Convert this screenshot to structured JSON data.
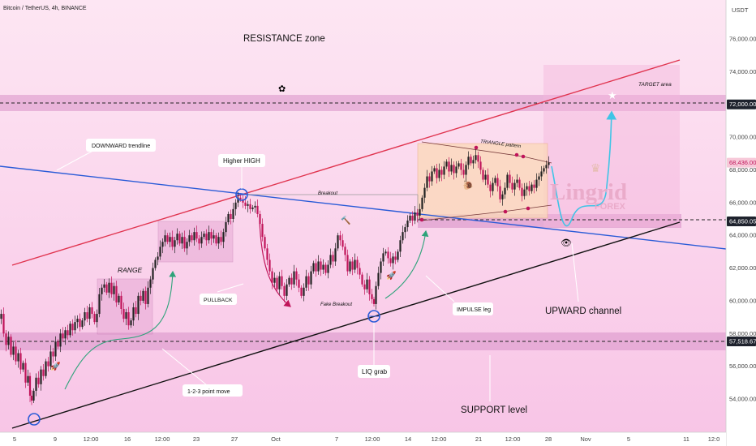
{
  "header": {
    "symbol": "Bitcoin / TetherUS, 4h, BINANCE",
    "currency": "USDT"
  },
  "chart_data": {
    "type": "candlestick",
    "title": "Bitcoin / TetherUS, 4h, BINANCE",
    "ylabel": "USDT",
    "ylim": [
      52800,
      77900
    ],
    "y_ticks": [
      54000,
      56000,
      58000,
      60000,
      62000,
      64000,
      66000,
      68000,
      70000,
      72000,
      74000,
      76000
    ],
    "y_tick_labels": [
      "54,000.00",
      "56,000.00",
      "58,000.00",
      "60,000.00",
      "62,000.00",
      "64,000.00",
      "66,000.00",
      "68,000.00",
      "70,000.00",
      "72,000.00",
      "74,000.00",
      "76,000.00"
    ],
    "x_labels": [
      "5",
      "9",
      "12:00",
      "16",
      "12:00",
      "23",
      "27",
      "Oct",
      "7",
      "12:00",
      "14",
      "12:00",
      "21",
      "12:00",
      "28",
      "Nov",
      "5",
      "11",
      "12:0"
    ],
    "price_tags": [
      {
        "value": 72000,
        "label": "72,000.00",
        "style": "dark"
      },
      {
        "value": 68436,
        "label": "68,436.00",
        "style": "red"
      },
      {
        "value": 64850.05,
        "label": "64,850.05",
        "style": "dark"
      },
      {
        "value": 57518.67,
        "label": "57,518.67",
        "style": "dark"
      }
    ],
    "price_path": [
      [
        0,
        58900
      ],
      [
        3,
        59200
      ],
      [
        6,
        58000
      ],
      [
        9,
        57300
      ],
      [
        12,
        57800
      ],
      [
        15,
        56700
      ],
      [
        18,
        57200
      ],
      [
        21,
        56300
      ],
      [
        24,
        56800
      ],
      [
        27,
        55800
      ],
      [
        30,
        56200
      ],
      [
        33,
        55000
      ],
      [
        36,
        55400
      ],
      [
        38,
        54200
      ],
      [
        40,
        53900
      ],
      [
        43,
        54500
      ],
      [
        46,
        55300
      ],
      [
        49,
        54900
      ],
      [
        52,
        55800
      ],
      [
        55,
        55400
      ],
      [
        58,
        56300
      ],
      [
        61,
        56000
      ],
      [
        64,
        56900
      ],
      [
        67,
        56600
      ],
      [
        70,
        57500
      ],
      [
        73,
        57200
      ],
      [
        76,
        58000
      ],
      [
        79,
        57700
      ],
      [
        82,
        58200
      ],
      [
        85,
        57900
      ],
      [
        88,
        58600
      ],
      [
        91,
        58200
      ],
      [
        94,
        58700
      ],
      [
        97,
        58900
      ],
      [
        100,
        58400
      ],
      [
        103,
        58800
      ],
      [
        106,
        59300
      ],
      [
        109,
        58900
      ],
      [
        112,
        59600
      ],
      [
        115,
        59200
      ],
      [
        118,
        58700
      ],
      [
        121,
        59200
      ],
      [
        124,
        60400
      ],
      [
        127,
        60800
      ],
      [
        130,
        61000
      ],
      [
        133,
        60500
      ],
      [
        136,
        61100
      ],
      [
        139,
        60400
      ],
      [
        142,
        60900
      ],
      [
        145,
        59900
      ],
      [
        148,
        60300
      ],
      [
        151,
        59500
      ],
      [
        154,
        58900
      ],
      [
        157,
        59300
      ],
      [
        160,
        58500
      ],
      [
        163,
        58800
      ],
      [
        166,
        59600
      ],
      [
        169,
        59200
      ],
      [
        172,
        60300
      ],
      [
        175,
        60000
      ],
      [
        178,
        60600
      ],
      [
        181,
        59800
      ],
      [
        184,
        60800
      ],
      [
        187,
        61300
      ],
      [
        190,
        62000
      ],
      [
        193,
        62500
      ],
      [
        196,
        62700
      ],
      [
        199,
        63300
      ],
      [
        202,
        63600
      ],
      [
        205,
        64000
      ],
      [
        208,
        63600
      ],
      [
        211,
        63900
      ],
      [
        214,
        63300
      ],
      [
        217,
        63700
      ],
      [
        220,
        64100
      ],
      [
        223,
        63500
      ],
      [
        226,
        63900
      ],
      [
        229,
        63200
      ],
      [
        232,
        63600
      ],
      [
        235,
        64000
      ],
      [
        238,
        63700
      ],
      [
        241,
        64200
      ],
      [
        244,
        63800
      ],
      [
        247,
        63500
      ],
      [
        250,
        63900
      ],
      [
        253,
        64100
      ],
      [
        256,
        63700
      ],
      [
        259,
        64200
      ],
      [
        262,
        63800
      ],
      [
        265,
        64000
      ],
      [
        268,
        63500
      ],
      [
        271,
        63900
      ],
      [
        274,
        63600
      ],
      [
        277,
        64200
      ],
      [
        280,
        64800
      ],
      [
        283,
        65300
      ],
      [
        286,
        65000
      ],
      [
        289,
        65600
      ],
      [
        292,
        66000
      ],
      [
        295,
        66300
      ],
      [
        298,
        66200
      ],
      [
        301,
        66000
      ],
      [
        304,
        65800
      ],
      [
        307,
        65900
      ],
      [
        310,
        65600
      ],
      [
        313,
        65700
      ],
      [
        316,
        65800
      ],
      [
        319,
        65300
      ],
      [
        322,
        64700
      ],
      [
        325,
        63900
      ],
      [
        328,
        63200
      ],
      [
        331,
        62500
      ],
      [
        334,
        61800
      ],
      [
        337,
        61100
      ],
      [
        340,
        61400
      ],
      [
        343,
        60700
      ],
      [
        346,
        61500
      ],
      [
        349,
        60900
      ],
      [
        352,
        60300
      ],
      [
        355,
        61000
      ],
      [
        358,
        61400
      ],
      [
        361,
        61000
      ],
      [
        364,
        61800
      ],
      [
        367,
        61300
      ],
      [
        370,
        60800
      ],
      [
        373,
        60300
      ],
      [
        376,
        60800
      ],
      [
        379,
        61500
      ],
      [
        382,
        61000
      ],
      [
        385,
        61800
      ],
      [
        388,
        62300
      ],
      [
        391,
        61800
      ],
      [
        394,
        62400
      ],
      [
        397,
        61900
      ],
      [
        400,
        62200
      ],
      [
        403,
        61700
      ],
      [
        406,
        62200
      ],
      [
        409,
        62800
      ],
      [
        412,
        62400
      ],
      [
        415,
        63200
      ],
      [
        418,
        64000
      ],
      [
        421,
        63700
      ],
      [
        424,
        63300
      ],
      [
        427,
        62800
      ],
      [
        430,
        61800
      ],
      [
        433,
        62400
      ],
      [
        436,
        61900
      ],
      [
        439,
        62500
      ],
      [
        442,
        62000
      ],
      [
        445,
        61600
      ],
      [
        448,
        61000
      ],
      [
        451,
        60700
      ],
      [
        454,
        61300
      ],
      [
        457,
        60400
      ],
      [
        460,
        60100
      ],
      [
        462,
        59800
      ],
      [
        465,
        60900
      ],
      [
        468,
        61700
      ],
      [
        471,
        62400
      ],
      [
        474,
        62900
      ],
      [
        477,
        63000
      ],
      [
        480,
        62600
      ],
      [
        483,
        62300
      ],
      [
        486,
        62700
      ],
      [
        489,
        62500
      ],
      [
        492,
        63000
      ],
      [
        495,
        63700
      ],
      [
        498,
        64200
      ],
      [
        501,
        64500
      ],
      [
        504,
        64900
      ],
      [
        507,
        65200
      ],
      [
        510,
        64900
      ],
      [
        513,
        65400
      ],
      [
        516,
        65200
      ],
      [
        519,
        65600
      ],
      [
        522,
        66300
      ],
      [
        525,
        66900
      ],
      [
        528,
        67600
      ],
      [
        531,
        67300
      ],
      [
        534,
        67900
      ],
      [
        537,
        68100
      ],
      [
        540,
        67500
      ],
      [
        543,
        68000
      ],
      [
        546,
        67700
      ],
      [
        549,
        68200
      ],
      [
        552,
        68500
      ],
      [
        555,
        67900
      ],
      [
        558,
        68300
      ],
      [
        561,
        67800
      ],
      [
        564,
        68200
      ],
      [
        567,
        68400
      ],
      [
        570,
        68000
      ],
      [
        573,
        67700
      ],
      [
        576,
        68300
      ],
      [
        579,
        68800
      ],
      [
        582,
        68400
      ],
      [
        585,
        68600
      ],
      [
        588,
        68900
      ],
      [
        591,
        68500
      ],
      [
        594,
        68000
      ],
      [
        597,
        67400
      ],
      [
        600,
        67700
      ],
      [
        603,
        67100
      ],
      [
        606,
        66700
      ],
      [
        609,
        67200
      ],
      [
        612,
        67500
      ],
      [
        615,
        67000
      ],
      [
        618,
        66200
      ],
      [
        621,
        66500
      ],
      [
        624,
        66900
      ],
      [
        627,
        67700
      ],
      [
        630,
        67200
      ],
      [
        633,
        66800
      ],
      [
        636,
        67200
      ],
      [
        639,
        67400
      ],
      [
        642,
        66900
      ],
      [
        645,
        66400
      ],
      [
        648,
        66800
      ],
      [
        651,
        67000
      ],
      [
        654,
        66700
      ],
      [
        657,
        67100
      ],
      [
        660,
        66900
      ],
      [
        663,
        67400
      ],
      [
        666,
        67600
      ],
      [
        669,
        67900
      ],
      [
        672,
        68100
      ],
      [
        675,
        68300
      ],
      [
        678,
        68436
      ]
    ]
  },
  "annotations": {
    "resistance_zone": "RESISTANCE zone",
    "target_area": "TARGET area",
    "downward_trendline": "DOWNWARD trendline",
    "higher_high": "Higher HIGH",
    "breakout": "Breakout",
    "triangle_pattern": "TRIANGLE pattern",
    "range": "RANGE",
    "pullback": "PULLBACK",
    "fake_breakout": "Fake Breakout",
    "impulse_leg": "IMPULSE leg",
    "upward_channel": "UPWARD channel",
    "liq_grab": "LIQ grab",
    "point_move": "1-2-3 point move",
    "support_level": "SUPPORT level"
  },
  "watermark": {
    "brand": "Lingrid",
    "sub": "FOREX"
  },
  "colors": {
    "background": "#fbd3ec",
    "zone": "#d891c8",
    "resistance_line": "#e0344f",
    "trendline": "#2a5bd7",
    "support_line": "#111111",
    "candle_up": "#222222",
    "candle_down": "#c0145a",
    "projection": "#3fc4e6"
  }
}
